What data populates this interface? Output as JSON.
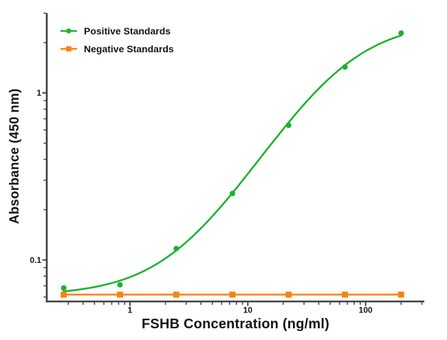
{
  "figure": {
    "xlabel": "FSHB Concentration (ng/ml)",
    "ylabel": "Absorbance (450 nm)",
    "background_color": "#ffffff",
    "axis_color": "#3d3d3d",
    "text_color": "#141414"
  },
  "legend": {
    "position": "top-left",
    "items": [
      {
        "label": "Positive Standards",
        "color": "#1ab32b",
        "marker": "circle"
      },
      {
        "label": "Negative Standards",
        "color": "#f8830f",
        "marker": "square"
      }
    ]
  },
  "chart_data": {
    "type": "line",
    "title": "",
    "xlabel": "FSHB Concentration (ng/ml)",
    "ylabel": "Absorbance (450 nm)",
    "x_scale": "log",
    "y_scale": "log",
    "xlim": [
      0.19,
      300
    ],
    "ylim": [
      0.0565,
      3.0
    ],
    "grid": false,
    "legend_position": "top-left",
    "x": [
      0.274,
      0.823,
      2.47,
      7.41,
      22.2,
      66.7,
      200
    ],
    "series": [
      {
        "name": "Positive Standards",
        "marker": "circle",
        "color": "#1ab32b",
        "values": [
          0.068,
          0.071,
          0.117,
          0.25,
          0.64,
          1.43,
          2.28
        ],
        "fit_curve": {
          "type": "4PL",
          "bottom": 0.0612,
          "top": 2.7,
          "ec50": 60,
          "hill": 1.22
        }
      },
      {
        "name": "Negative Standards",
        "marker": "square",
        "color": "#f8830f",
        "values": [
          0.062,
          0.062,
          0.062,
          0.062,
          0.062,
          0.062,
          0.062
        ]
      }
    ],
    "x_axis": {
      "major_ticks": [
        {
          "value": 1,
          "label": "1"
        },
        {
          "value": 10,
          "label": "10"
        },
        {
          "value": 100,
          "label": "100"
        }
      ]
    },
    "y_axis": {
      "major_ticks": [
        {
          "value": 1,
          "label": "1"
        },
        {
          "value": 0.1,
          "label": "0.1"
        }
      ]
    }
  }
}
